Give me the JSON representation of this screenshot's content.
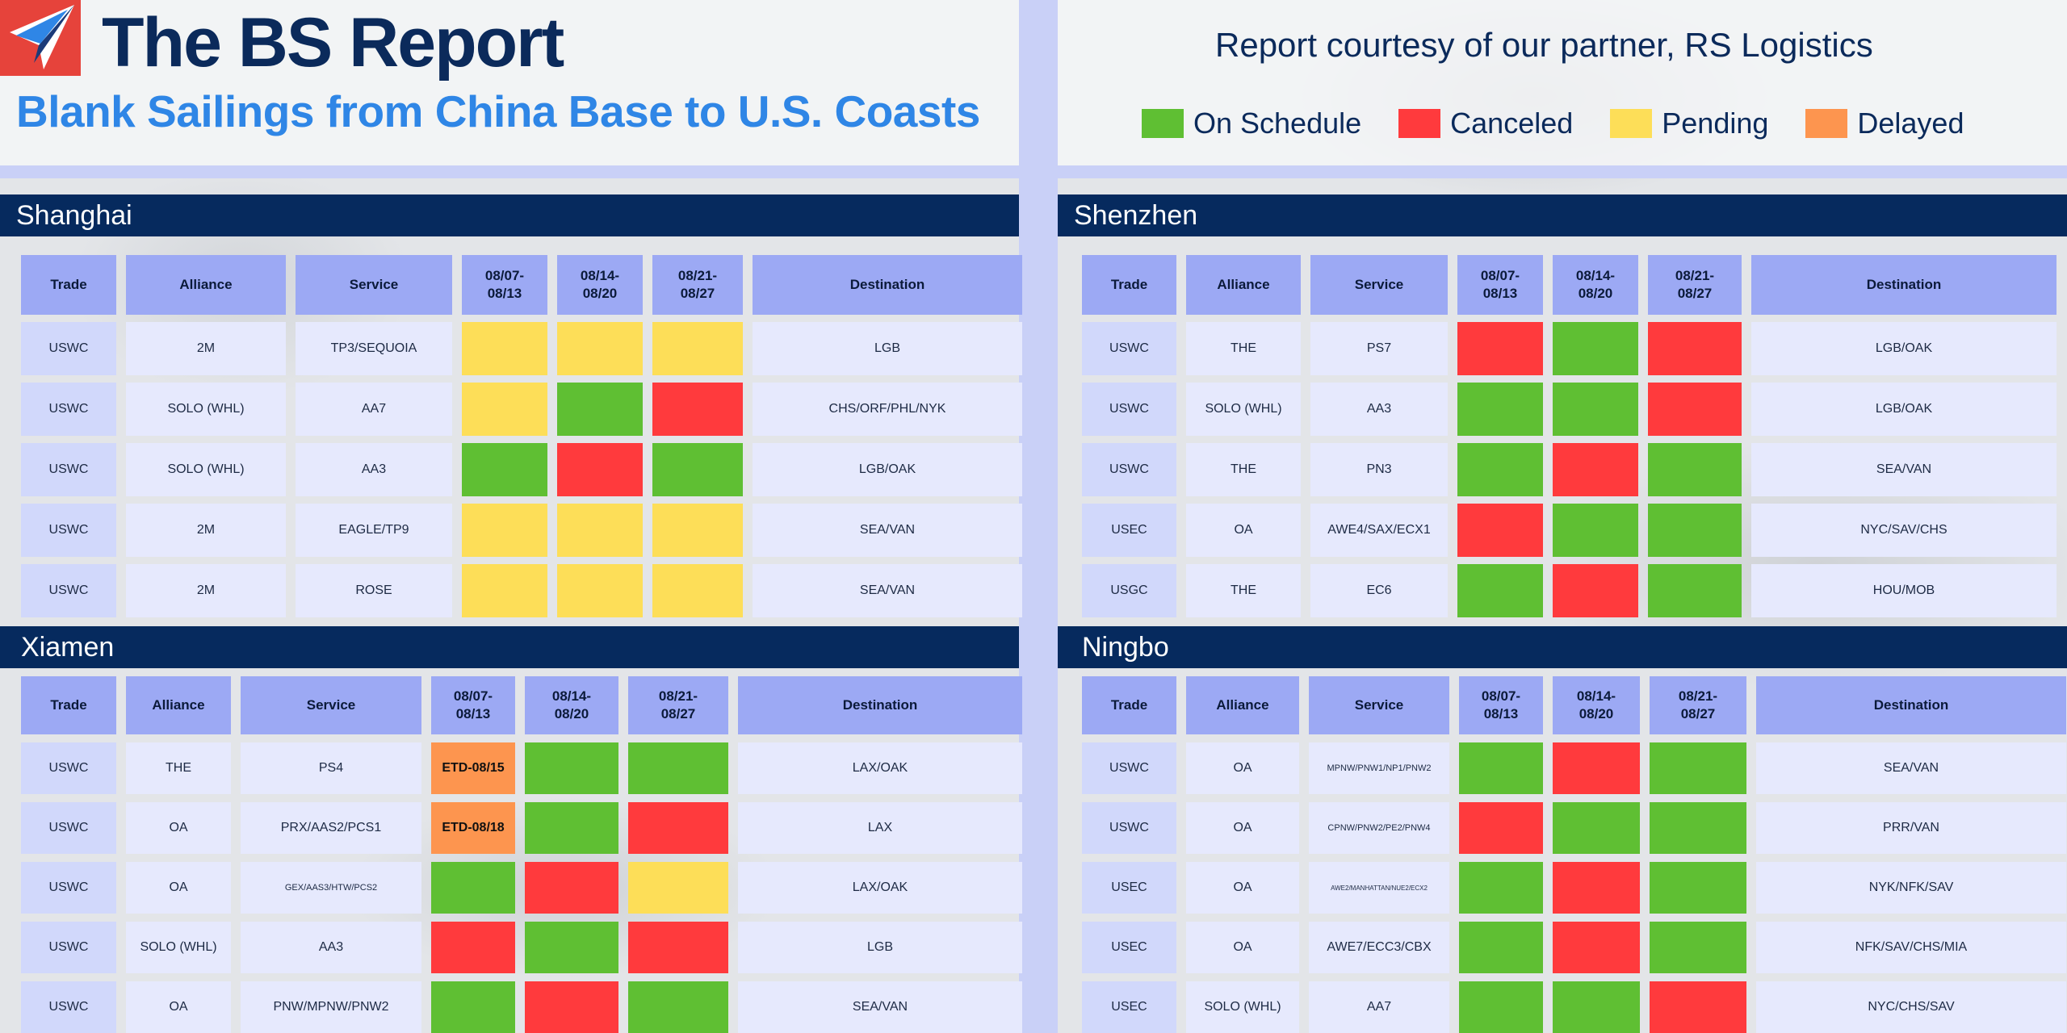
{
  "header": {
    "title": "The BS Report",
    "subtitle": "Blank Sailings from China Base to U.S. Coasts",
    "partner_note": "Report courtesy of our partner, RS Logistics"
  },
  "legend": [
    {
      "label": "On Schedule",
      "color": "#5fbf33"
    },
    {
      "label": "Canceled",
      "color": "#ff3a3d"
    },
    {
      "label": "Pending",
      "color": "#fdde58"
    },
    {
      "label": "Delayed",
      "color": "#fd954f"
    }
  ],
  "columns": [
    "Trade",
    "Alliance",
    "Service",
    "08/07-\n08/13",
    "08/14-\n08/20",
    "08/21-\n08/27",
    "Destination"
  ],
  "sections": {
    "shanghai": {
      "name": "Shanghai",
      "rows": [
        [
          "USWC",
          "2M",
          "TP3/SEQUOIA",
          "pending",
          "pending",
          "pending",
          "LGB"
        ],
        [
          "USWC",
          "SOLO (WHL)",
          "AA7",
          "pending",
          "on_schedule",
          "canceled",
          "CHS/ORF/PHL/NYK"
        ],
        [
          "USWC",
          "SOLO (WHL)",
          "AA3",
          "on_schedule",
          "canceled",
          "on_schedule",
          "LGB/OAK"
        ],
        [
          "USWC",
          "2M",
          "EAGLE/TP9",
          "pending",
          "pending",
          "pending",
          "SEA/VAN"
        ],
        [
          "USWC",
          "2M",
          "ROSE",
          "pending",
          "pending",
          "pending",
          "SEA/VAN"
        ]
      ]
    },
    "shenzhen": {
      "name": "Shenzhen",
      "rows": [
        [
          "USWC",
          "THE",
          "PS7",
          "canceled",
          "on_schedule",
          "canceled",
          "LGB/OAK"
        ],
        [
          "USWC",
          "SOLO (WHL)",
          "AA3",
          "on_schedule",
          "on_schedule",
          "canceled",
          "LGB/OAK"
        ],
        [
          "USWC",
          "THE",
          "PN3",
          "on_schedule",
          "canceled",
          "on_schedule",
          "SEA/VAN"
        ],
        [
          "USEC",
          "OA",
          "AWE4/SAX/ECX1",
          "canceled",
          "on_schedule",
          "on_schedule",
          "NYC/SAV/CHS"
        ],
        [
          "USGC",
          "THE",
          "EC6",
          "on_schedule",
          "canceled",
          "on_schedule",
          "HOU/MOB"
        ]
      ]
    },
    "xiamen": {
      "name": "Xiamen",
      "rows": [
        [
          "USWC",
          "THE",
          "PS4",
          "delayed:ETD-08/15",
          "on_schedule",
          "on_schedule",
          "LAX/OAK"
        ],
        [
          "USWC",
          "OA",
          "PRX/AAS2/PCS1",
          "delayed:ETD-08/18",
          "on_schedule",
          "canceled",
          "LAX"
        ],
        [
          "USWC",
          "OA",
          "GEX/AAS3/HTW/PCS2",
          "on_schedule",
          "canceled",
          "pending",
          "LAX/OAK"
        ],
        [
          "USWC",
          "SOLO (WHL)",
          "AA3",
          "canceled",
          "on_schedule",
          "canceled",
          "LGB"
        ],
        [
          "USWC",
          "OA",
          "PNW/MPNW/PNW2",
          "on_schedule",
          "canceled",
          "on_schedule",
          "SEA/VAN"
        ]
      ]
    },
    "ningbo": {
      "name": "Ningbo",
      "rows": [
        [
          "USWC",
          "OA",
          "MPNW/PNW1/NP1/PNW2",
          "on_schedule",
          "canceled",
          "on_schedule",
          "SEA/VAN"
        ],
        [
          "USWC",
          "OA",
          "CPNW/PNW2/PE2/PNW4",
          "canceled",
          "on_schedule",
          "on_schedule",
          "PRR/VAN"
        ],
        [
          "USEC",
          "OA",
          "AWE2/MANHATTAN/NUE2/ECX2",
          "on_schedule",
          "canceled",
          "on_schedule",
          "NYK/NFK/SAV"
        ],
        [
          "USEC",
          "OA",
          "AWE7/ECC3/CBX",
          "on_schedule",
          "canceled",
          "on_schedule",
          "NFK/SAV/CHS/MIA"
        ],
        [
          "USEC",
          "SOLO (WHL)",
          "AA7",
          "on_schedule",
          "on_schedule",
          "canceled",
          "NYC/CHS/SAV"
        ]
      ]
    }
  }
}
